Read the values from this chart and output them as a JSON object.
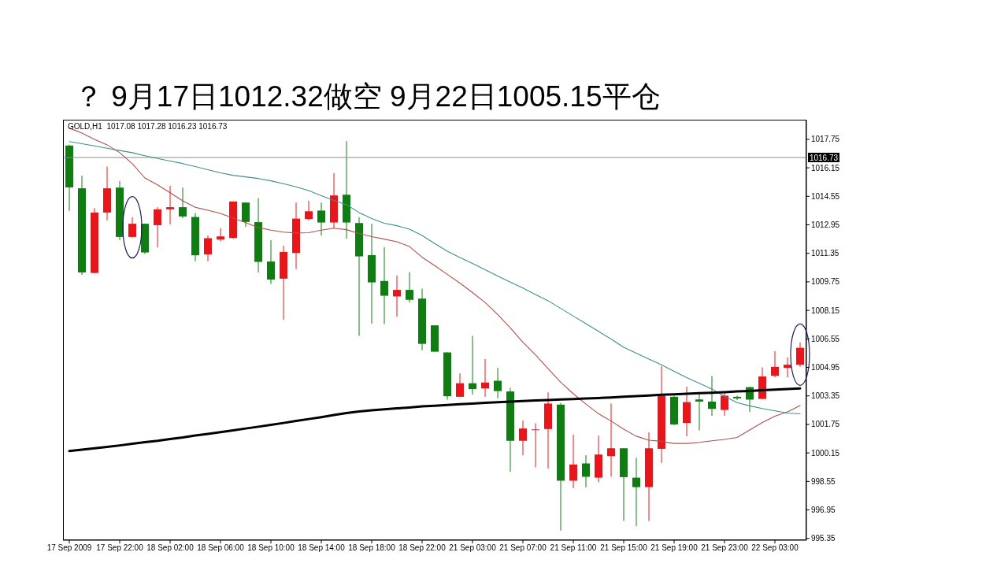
{
  "chart_data": {
    "type": "candlestick",
    "title": "？ 9月17日1012.32做空 9月22日1005.15平仓",
    "annotations": [
      "GOLD,H1  1017.08 1017.28 1016.23 1016.73"
    ],
    "categories": [
      "17 Sep 2009",
      null,
      null,
      null,
      "17 Sep 22:00",
      null,
      null,
      null,
      "18 Sep 02:00",
      null,
      null,
      null,
      "18 Sep 06:00",
      null,
      null,
      null,
      "18 Sep 10:00",
      null,
      null,
      null,
      "18 Sep 14:00",
      null,
      null,
      null,
      "18 Sep 18:00",
      null,
      null,
      null,
      "18 Sep 22:00",
      null,
      null,
      null,
      "21 Sep 03:00",
      null,
      null,
      null,
      "21 Sep 07:00",
      null,
      null,
      null,
      "21 Sep 11:00",
      null,
      null,
      null,
      "21 Sep 15:00",
      null,
      null,
      null,
      "21 Sep 19:00",
      null,
      null,
      null,
      "21 Sep 23:00",
      null,
      null,
      null,
      "22 Sep 03:00",
      null,
      null
    ],
    "ohlc": [
      [
        1017.4,
        1017.45,
        1013.73,
        1015.05
      ],
      [
        1015.0,
        1015.7,
        1010.14,
        1010.28
      ],
      [
        1010.25,
        1013.89,
        1010.22,
        1013.64
      ],
      [
        1013.64,
        1016.22,
        1013.2,
        1015.0
      ],
      [
        1015.04,
        1015.41,
        1012.09,
        1012.27
      ],
      [
        1012.27,
        1013.38,
        1012.24,
        1013.01
      ],
      [
        1013.01,
        1013.01,
        1011.31,
        1011.4
      ],
      [
        1012.93,
        1013.94,
        1011.68,
        1013.82
      ],
      [
        1013.82,
        1015.14,
        1012.98,
        1013.94
      ],
      [
        1013.94,
        1015.04,
        1013.32,
        1013.42
      ],
      [
        1013.39,
        1013.61,
        1010.91,
        1011.24
      ],
      [
        1011.29,
        1012.35,
        1010.91,
        1012.2
      ],
      [
        1012.12,
        1012.76,
        1012.02,
        1012.3
      ],
      [
        1012.21,
        1014.26,
        1012.17,
        1014.26
      ],
      [
        1014.2,
        1014.2,
        1012.83,
        1013.11
      ],
      [
        1013.1,
        1014.45,
        1010.28,
        1010.87
      ],
      [
        1010.89,
        1012.09,
        1009.63,
        1009.88
      ],
      [
        1009.93,
        1011.78,
        1007.63,
        1011.43
      ],
      [
        1011.37,
        1014.2,
        1010.47,
        1013.3
      ],
      [
        1013.27,
        1014.3,
        1013.2,
        1013.71
      ],
      [
        1013.75,
        1014.2,
        1012.35,
        1013.08
      ],
      [
        1013.08,
        1015.85,
        1012.76,
        1014.6
      ],
      [
        1014.64,
        1017.65,
        1012.17,
        1013.08
      ],
      [
        1013.05,
        1013.38,
        1006.72,
        1011.18
      ],
      [
        1011.25,
        1013.01,
        1007.41,
        1009.72
      ],
      [
        1009.8,
        1011.7,
        1007.38,
        1008.97
      ],
      [
        1008.93,
        1010.11,
        1007.79,
        1009.3
      ],
      [
        1009.3,
        1010.3,
        1008.59,
        1008.74
      ],
      [
        1008.81,
        1009.37,
        1005.91,
        1006.27
      ],
      [
        1007.31,
        1007.31,
        1005.83,
        1005.83
      ],
      [
        1005.79,
        1005.79,
        1003.14,
        1003.33
      ],
      [
        1003.3,
        1004.61,
        1003.29,
        1004.06
      ],
      [
        1004.06,
        1006.72,
        1003.43,
        1003.73
      ],
      [
        1003.77,
        1005.42,
        1003.3,
        1004.1
      ],
      [
        1004.2,
        1004.92,
        1003.21,
        1003.62
      ],
      [
        1003.6,
        1003.8,
        999.09,
        1000.83
      ],
      [
        1000.83,
        1001.96,
        1000.02,
        1001.52
      ],
      [
        1001.44,
        1001.81,
        999.34,
        1001.47
      ],
      [
        1001.49,
        1003.55,
        999.28,
        1002.92
      ],
      [
        1002.86,
        1002.96,
        995.79,
        998.59
      ],
      [
        998.59,
        1001.17,
        998.17,
        999.5
      ],
      [
        999.56,
        1000.02,
        998.22,
        998.81
      ],
      [
        998.76,
        1001.12,
        998.51,
        1000.06
      ],
      [
        999.97,
        1002.92,
        998.81,
        1000.41
      ],
      [
        1000.41,
        1000.41,
        996.33,
        998.79
      ],
      [
        998.76,
        999.87,
        996.04,
        998.23
      ],
      [
        998.23,
        1001.3,
        996.33,
        1000.41
      ],
      [
        1000.38,
        1005.02,
        999.58,
        1003.36
      ],
      [
        1003.3,
        1003.36,
        1001.71,
        1001.75
      ],
      [
        1001.83,
        1003.87,
        1001.08,
        1003.0
      ],
      [
        1003.15,
        1003.55,
        1001.41,
        1003.03
      ],
      [
        1003.03,
        1004.46,
        1002.23,
        1002.62
      ],
      [
        1002.56,
        1003.55,
        1002.23,
        1003.36
      ],
      [
        1003.3,
        1003.36,
        1003.11,
        1003.21
      ],
      [
        1003.84,
        1003.87,
        1002.45,
        1003.14
      ],
      [
        1003.18,
        1004.95,
        1003.18,
        1004.44
      ],
      [
        1004.48,
        1005.86,
        1004.39,
        1004.98
      ],
      [
        1004.92,
        1005.51,
        1004.39,
        1005.1
      ],
      [
        1005.1,
        1006.35,
        1004.98,
        1006.05
      ]
    ],
    "colors": [
      "#0f7d12",
      "#0f7d12",
      "#e8161b",
      "#e8161b",
      "#0f7d12",
      "#e8161b",
      "#0f7d12",
      "#e8161b",
      "#e8161b",
      "#0f7d12",
      "#0f7d12",
      "#e8161b",
      "#e8161b",
      "#e8161b",
      "#0f7d12",
      "#0f7d12",
      "#0f7d12",
      "#e8161b",
      "#e8161b",
      "#e8161b",
      "#0f7d12",
      "#e8161b",
      "#0f7d12",
      "#0f7d12",
      "#0f7d12",
      "#0f7d12",
      "#e8161b",
      "#0f7d12",
      "#0f7d12",
      "#0f7d12",
      "#0f7d12",
      "#e8161b",
      "#0f7d12",
      "#e8161b",
      "#0f7d12",
      "#0f7d12",
      "#e8161b",
      "#e8161b",
      "#e8161b",
      "#0f7d12",
      "#e8161b",
      "#0f7d12",
      "#e8161b",
      "#e8161b",
      "#0f7d12",
      "#0f7d12",
      "#e8161b",
      "#e8161b",
      "#0f7d12",
      "#e8161b",
      "#0f7d12",
      "#0f7d12",
      "#e8161b",
      "#0f7d12",
      "#0f7d12",
      "#e8161b",
      "#e8161b",
      "#e8161b",
      "#e8161b"
    ],
    "series": [
      {
        "type": "line",
        "color": "#b0504c",
        "values": [
          1018.38,
          1018.1,
          1017.75,
          1017.44,
          1017.0,
          1016.38,
          1015.58,
          1015.19,
          1014.75,
          1014.3,
          1013.93,
          1013.77,
          1013.59,
          1013.33,
          1013.07,
          1012.8,
          1012.65,
          1012.54,
          1012.49,
          1012.51,
          1012.65,
          1012.76,
          1012.68,
          1012.46,
          1012.29,
          1012.15,
          1012.0,
          1011.73,
          1011.13,
          1010.66,
          1010.17,
          1009.68,
          1009.15,
          1008.59,
          1007.92,
          1007.17,
          1006.36,
          1005.65,
          1004.88,
          1004.12,
          1003.47,
          1002.89,
          1002.35,
          1001.94,
          1001.48,
          1001.09,
          1000.86,
          1000.8,
          1000.68,
          1000.68,
          1000.74,
          1000.83,
          1000.91,
          1001.02,
          1001.44,
          1001.86,
          1002.21,
          1002.45,
          1002.81
        ]
      },
      {
        "type": "line",
        "color": "#3f8f8c",
        "values": [
          1017.62,
          1017.5,
          1017.38,
          1017.25,
          1017.12,
          1017.0,
          1016.83,
          1016.67,
          1016.53,
          1016.39,
          1016.22,
          1016.04,
          1015.87,
          1015.73,
          1015.64,
          1015.55,
          1015.42,
          1015.26,
          1015.08,
          1014.87,
          1014.59,
          1014.32,
          1014.08,
          1013.64,
          1013.3,
          1013.04,
          1012.9,
          1012.71,
          1012.35,
          1011.9,
          1011.47,
          1011.12,
          1010.78,
          1010.43,
          1010.08,
          1009.74,
          1009.4,
          1009.04,
          1008.69,
          1008.26,
          1007.83,
          1007.4,
          1006.97,
          1006.54,
          1006.08,
          1005.75,
          1005.42,
          1005.09,
          1004.73,
          1004.38,
          1004.06,
          1003.74,
          1003.33,
          1002.97,
          1002.79,
          1002.64,
          1002.51,
          1002.39,
          1002.34
        ]
      },
      {
        "type": "line",
        "color": "#000000",
        "values": [
          1000.25,
          1000.33,
          1000.41,
          1000.49,
          1000.57,
          1000.66,
          1000.75,
          1000.83,
          1000.93,
          1001.02,
          1001.13,
          1001.22,
          1001.32,
          1001.42,
          1001.52,
          1001.62,
          1001.72,
          1001.83,
          1001.95,
          1002.05,
          1002.16,
          1002.28,
          1002.39,
          1002.48,
          1002.54,
          1002.6,
          1002.65,
          1002.7,
          1002.76,
          1002.8,
          1002.84,
          1002.88,
          1002.92,
          1002.96,
          1003.0,
          1003.03,
          1003.06,
          1003.09,
          1003.12,
          1003.15,
          1003.17,
          1003.2,
          1003.23,
          1003.26,
          1003.3,
          1003.34,
          1003.37,
          1003.41,
          1003.44,
          1003.47,
          1003.5,
          1003.53,
          1003.56,
          1003.6,
          1003.63,
          1003.67,
          1003.7,
          1003.73,
          1003.77
        ]
      }
    ],
    "ylim": [
      995.25,
      1018.85
    ],
    "yticks": [
      995.35,
      996.95,
      998.55,
      1000.15,
      1001.75,
      1003.35,
      1004.95,
      1006.55,
      1008.15,
      1009.75,
      1011.35,
      1012.95,
      1014.55,
      1016.15,
      1017.75
    ],
    "ref_lines": [
      {
        "axis": "y",
        "value": 1016.73,
        "label": "1016.73",
        "color": "#8c8c8c"
      }
    ],
    "line_style": "solid",
    "marker": "none"
  }
}
